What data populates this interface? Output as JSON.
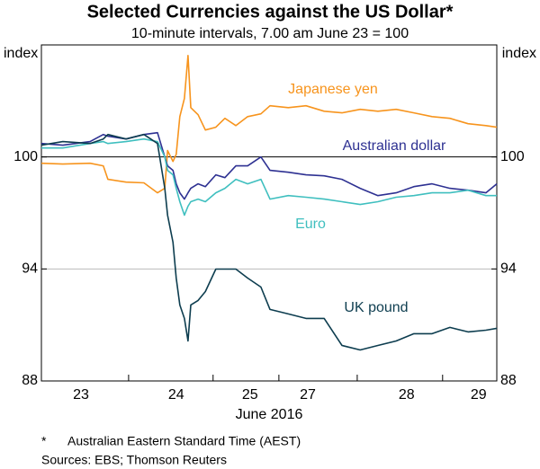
{
  "chart_data": {
    "type": "line",
    "title": "Selected Currencies against the US Dollar*",
    "subtitle": "10-minute intervals, 7.00 am June 23 = 100",
    "ylabel": "index",
    "xlabel": "June 2016",
    "notes": [
      "*",
      "Australian Eastern Standard Time (AEST)"
    ],
    "sources": "Sources:  EBS; Thomson Reuters",
    "x": [
      0,
      4.7,
      10.7,
      13.6,
      14.6,
      18.6,
      22.5,
      25.5,
      27.1,
      27.7,
      28.9,
      29.6,
      30.4,
      31.4,
      32.2,
      32.8,
      34.4,
      36.0,
      38.3,
      40.3,
      42.7,
      45.3,
      48.2,
      50.2,
      54.2,
      58.1,
      62.1,
      66.0,
      70.0,
      73.9,
      77.9,
      81.8,
      85.8,
      89.7,
      93.7,
      97.6,
      100
    ],
    "xlim": [
      0,
      100
    ],
    "xticks": [
      {
        "value": 8.7,
        "label": "23"
      },
      {
        "value": 29.6,
        "label": "24"
      },
      {
        "value": 45.8,
        "label": "25"
      },
      {
        "value": 58.5,
        "label": "27"
      },
      {
        "value": 80.2,
        "label": "28"
      },
      {
        "value": 96.0,
        "label": "29"
      }
    ],
    "ylim": [
      88,
      106
    ],
    "yticks": [
      88,
      94,
      100
    ],
    "grid": true,
    "series": [
      {
        "name": "Japanese yen",
        "color": "#f7941d",
        "values": [
          99.66,
          99.62,
          99.66,
          99.52,
          98.8,
          98.65,
          98.61,
          98.08,
          98.32,
          100.34,
          99.76,
          100.14,
          102.16,
          103.13,
          105.43,
          102.64,
          102.26,
          101.44,
          101.59,
          102.07,
          101.68,
          102.16,
          102.31,
          102.74,
          102.64,
          102.74,
          102.45,
          102.36,
          102.55,
          102.45,
          102.55,
          102.36,
          102.16,
          102.07,
          101.78,
          101.68,
          101.59
        ]
      },
      {
        "name": "Australian dollar",
        "color": "#2e3192",
        "values": [
          100.72,
          100.63,
          100.82,
          101.2,
          101.11,
          100.96,
          101.2,
          101.3,
          100,
          99.52,
          99.28,
          98.56,
          98.08,
          97.74,
          98.08,
          98.32,
          98.56,
          98.41,
          99.04,
          98.89,
          99.52,
          99.52,
          100,
          99.28,
          99.18,
          99.04,
          98.99,
          98.8,
          98.32,
          97.93,
          98.08,
          98.41,
          98.56,
          98.32,
          98.22,
          98.08,
          98.56
        ]
      },
      {
        "name": "Euro",
        "color": "#3fbfbf",
        "values": [
          100.48,
          100.48,
          100.72,
          100.82,
          100.72,
          100.82,
          100.96,
          100.82,
          100,
          99.28,
          99.04,
          98.32,
          97.6,
          96.88,
          97.36,
          97.6,
          97.74,
          97.6,
          98.08,
          98.32,
          98.8,
          98.56,
          98.8,
          97.74,
          97.93,
          97.84,
          97.74,
          97.6,
          97.45,
          97.6,
          97.84,
          97.93,
          98.08,
          98.08,
          98.22,
          97.93,
          97.93
        ]
      },
      {
        "name": "UK pound",
        "color": "#0d3d4f",
        "values": [
          100.63,
          100.82,
          100.72,
          100.96,
          101.2,
          100.96,
          101.2,
          100.72,
          98.32,
          96.88,
          95.43,
          93.51,
          92.07,
          91.35,
          90.14,
          92.07,
          92.31,
          92.79,
          93.99,
          93.99,
          93.99,
          93.51,
          93.03,
          91.83,
          91.59,
          91.35,
          91.35,
          89.9,
          89.66,
          89.9,
          90.14,
          90.53,
          90.53,
          90.87,
          90.63,
          90.72,
          90.82
        ]
      }
    ]
  }
}
